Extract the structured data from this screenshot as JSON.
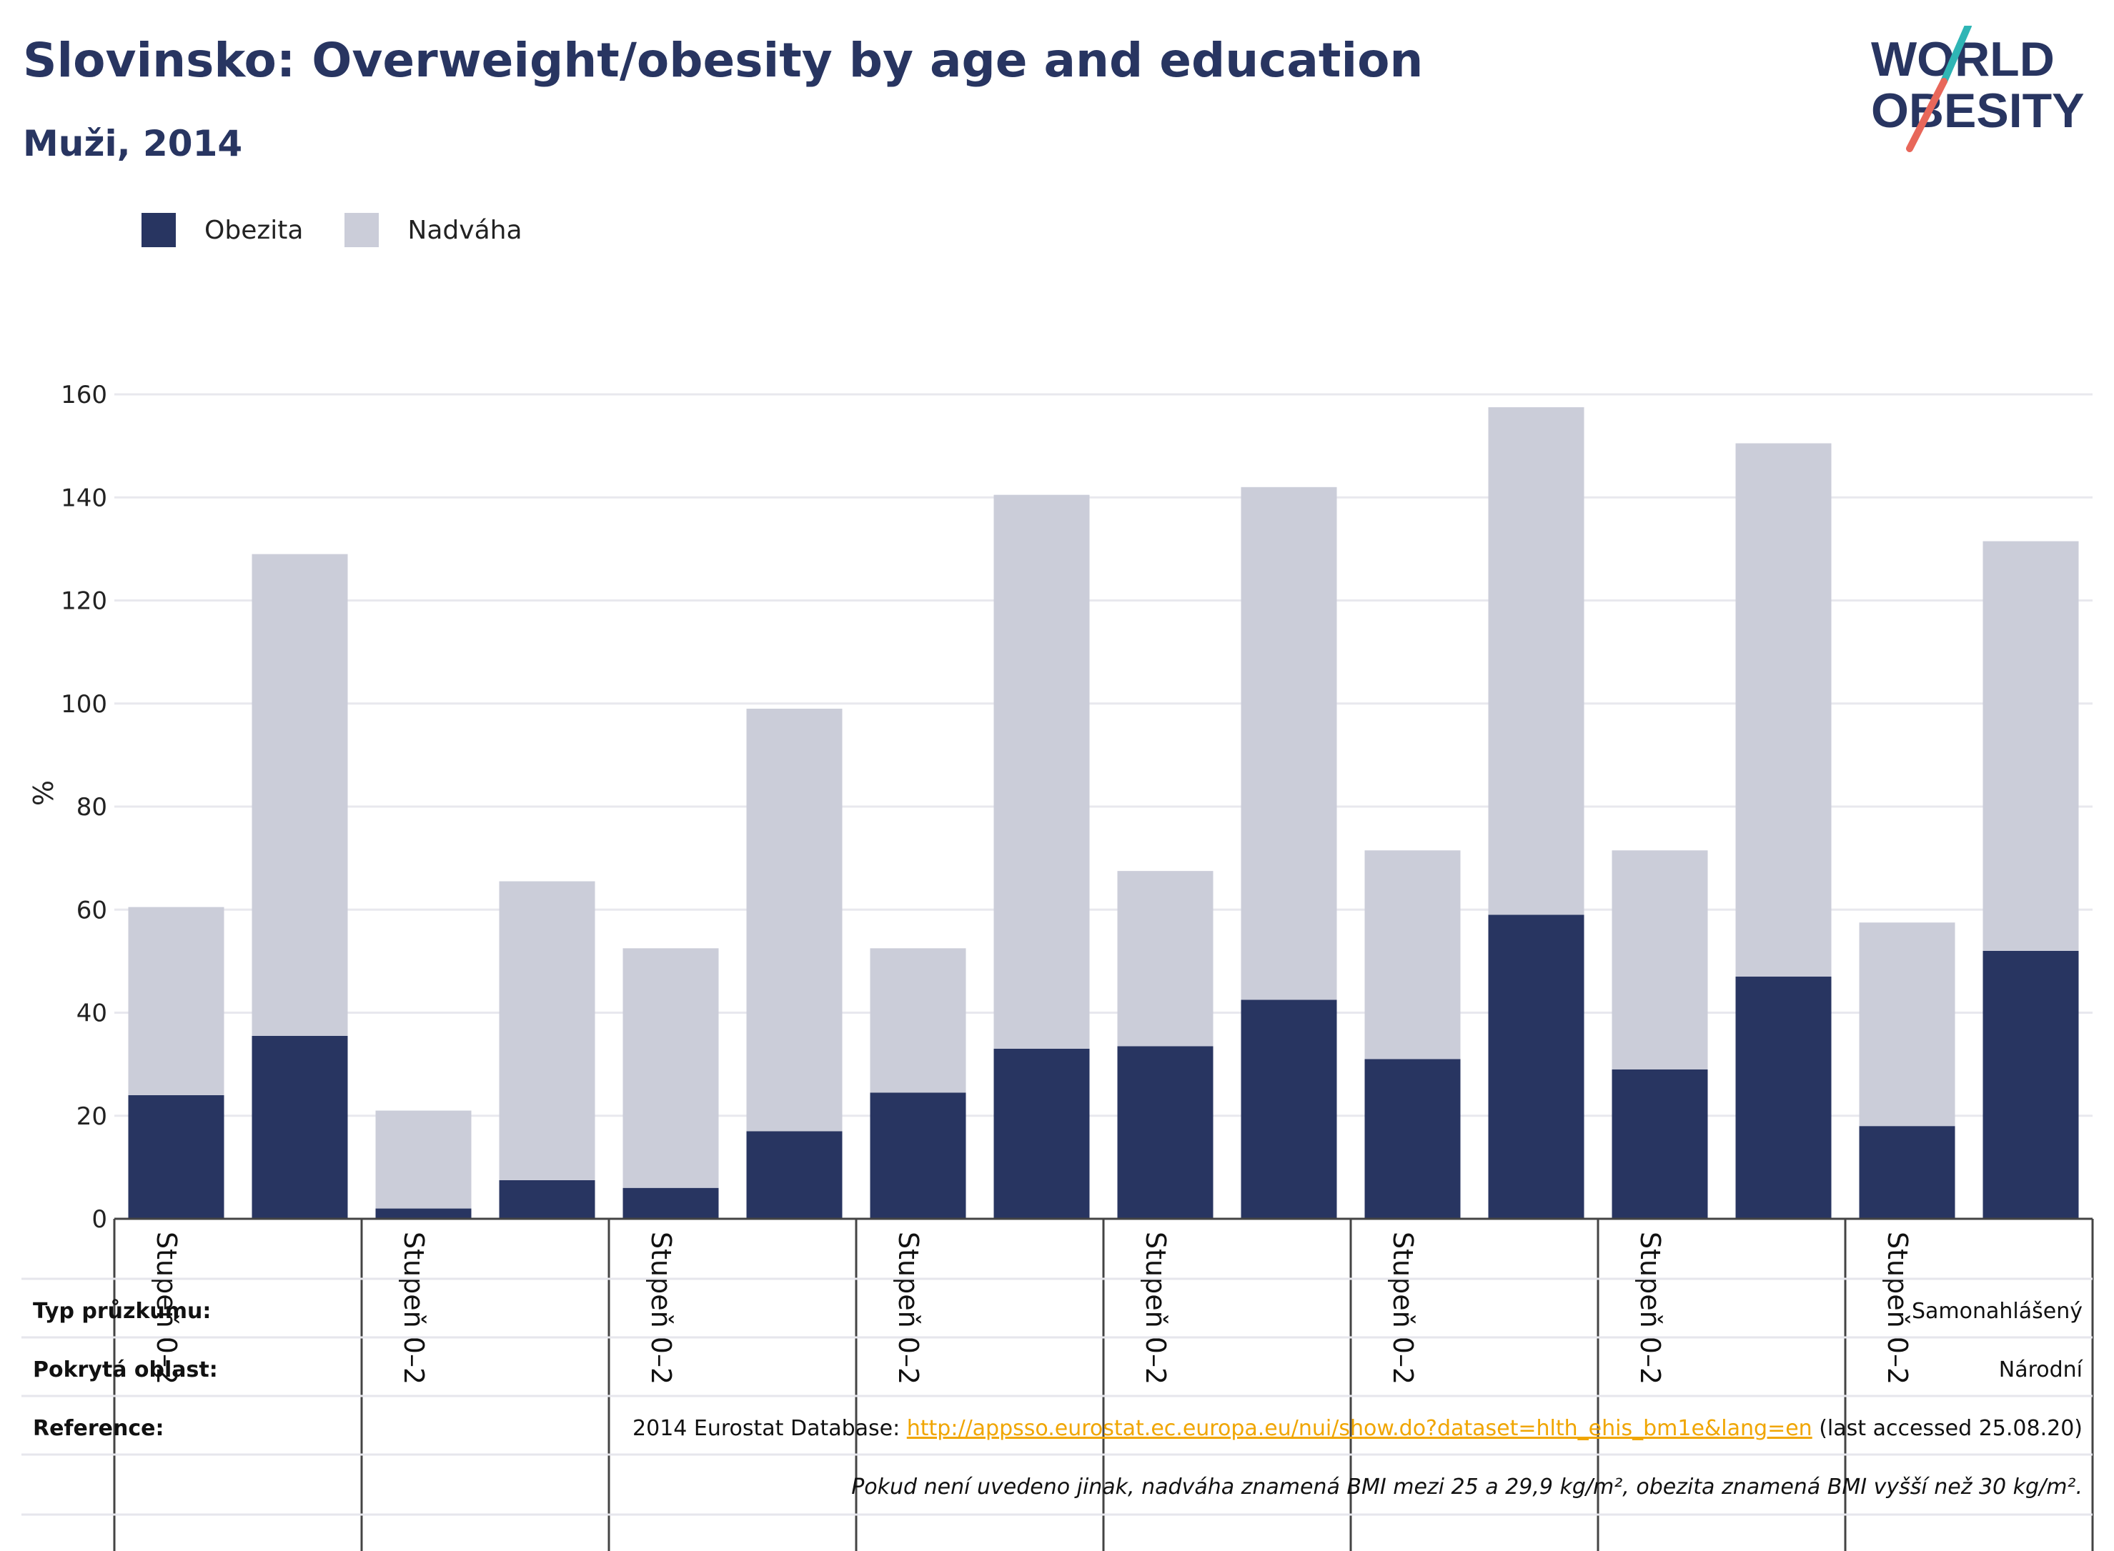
{
  "header": {
    "title": "Slovinsko: Overweight/obesity by age and education",
    "subtitle": "Muži, 2014"
  },
  "logo": {
    "line1": "WORLD",
    "line2": "OBESITY",
    "accent_teal": "#2fb5b5",
    "accent_red": "#e8675a"
  },
  "colors": {
    "obesity": "#283561",
    "overweight": "#cbcdd9",
    "grid": "#e8e8ee",
    "text": "#1f1f1f"
  },
  "chart_data": {
    "type": "bar",
    "stacked": true,
    "ylabel": "%",
    "ylim": [
      0,
      160
    ],
    "yticks": [
      0,
      20,
      40,
      60,
      80,
      100,
      120,
      140,
      160
    ],
    "grid": true,
    "legend": "top-left",
    "category_label": "Stupeň 0–2",
    "groups": 8,
    "bars_per_group": 2,
    "series": [
      {
        "name": "Obezita",
        "color": "#283561",
        "values": [
          24,
          35.5,
          2,
          7.5,
          6,
          17,
          24.5,
          33,
          33.5,
          42.5,
          31,
          59,
          29,
          47,
          18,
          52
        ]
      },
      {
        "name": "Nadváha",
        "color": "#cbcdd9",
        "values": [
          36.5,
          93.5,
          19,
          58,
          46.5,
          82,
          28,
          107.5,
          34,
          99.5,
          40.5,
          98.5,
          42.5,
          103.5,
          39.5,
          79.5
        ]
      }
    ]
  },
  "info": {
    "survey_type_label": "Typ průzkumu:",
    "survey_type_value": "Samonahlášený",
    "area_label": "Pokrytá oblast:",
    "area_value": "Národní",
    "reference_label": "Reference:",
    "reference_prefix": "2014 Eurostat Database: ",
    "reference_link": "http://appsso.eurostat.ec.europa.eu/nui/show.do?dataset=hlth_ehis_bm1e&lang=en",
    "reference_suffix": " (last accessed 25.08.20)",
    "note": "Pokud není uvedeno jinak, nadváha znamená BMI mezi 25 a 29,9 kg/m², obezita znamená BMI vyšší než 30 kg/m²."
  }
}
